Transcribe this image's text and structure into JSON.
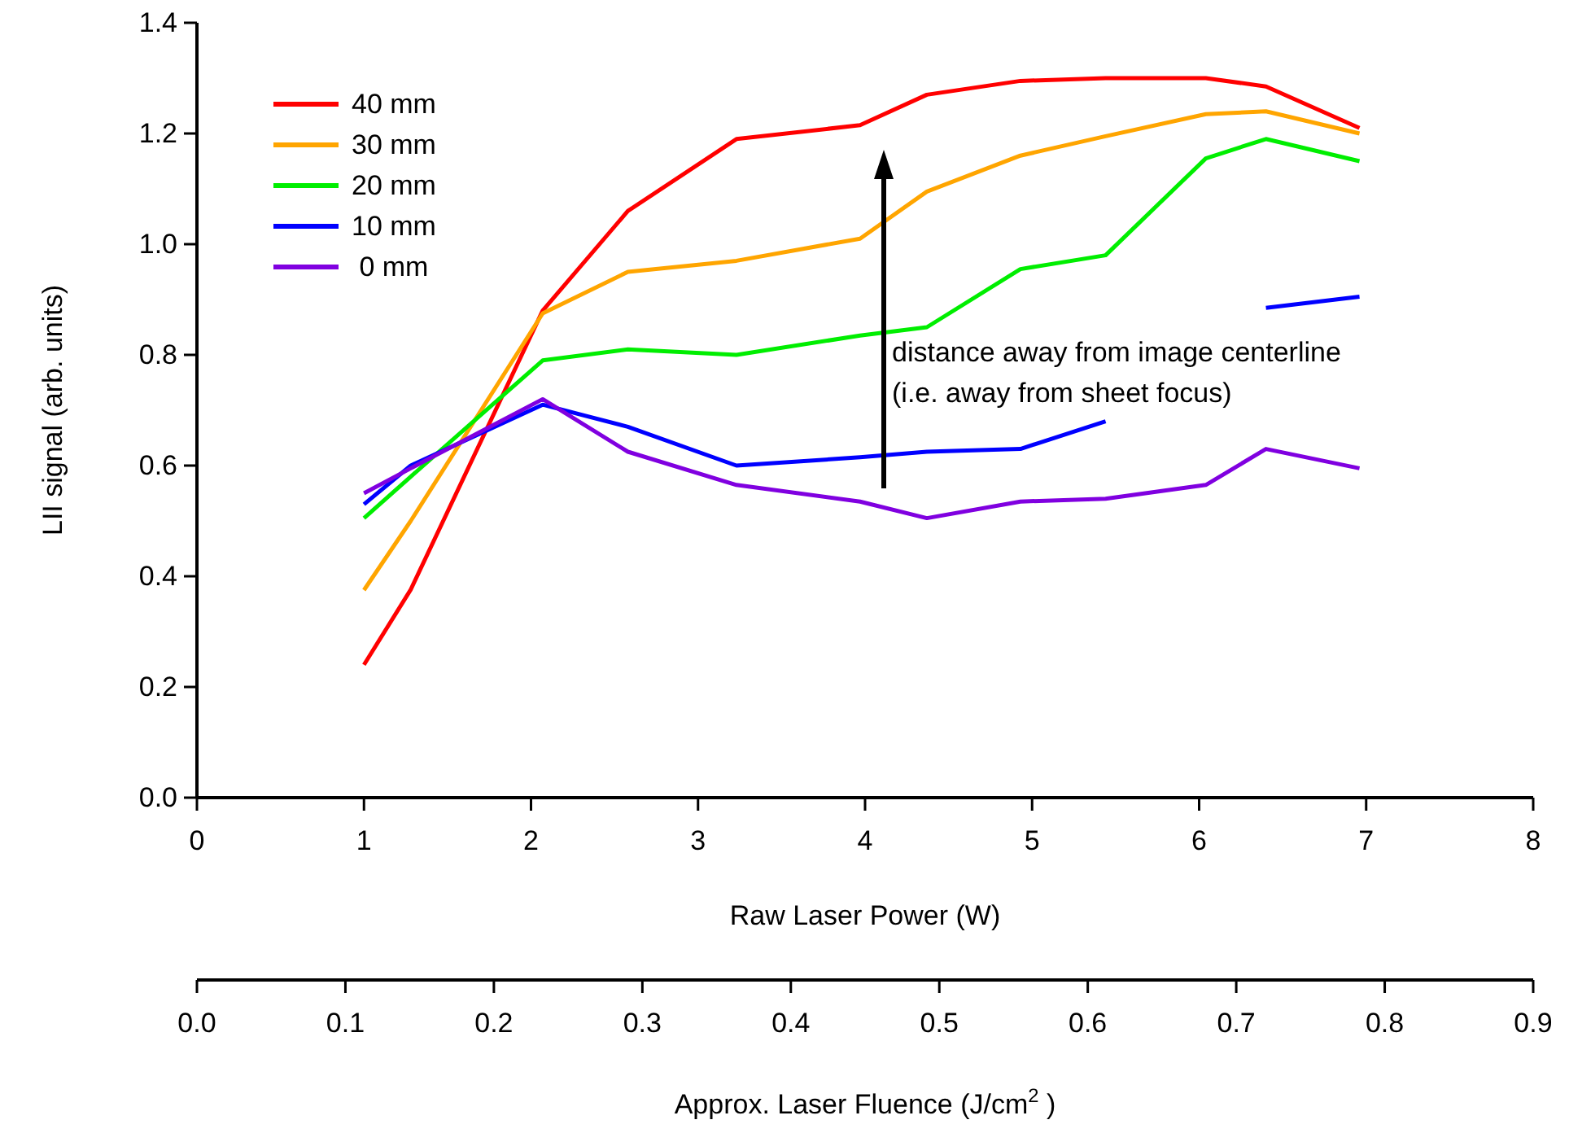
{
  "chart_data": {
    "type": "line",
    "xlabel": "Raw Laser Power (W)",
    "ylabel": "LII signal (arb. units)",
    "x2label": "Approx. Laser Fluence (J/cm$^{2}$ )",
    "x": [
      1.0,
      1.28,
      2.07,
      2.58,
      3.23,
      3.97,
      4.37,
      4.93,
      5.44,
      6.04,
      6.4,
      6.96
    ],
    "series": [
      {
        "name": "40 mm",
        "color": "#ff0000",
        "values": [
          0.24,
          0.376,
          0.88,
          1.06,
          1.19,
          1.215,
          1.27,
          1.295,
          1.3,
          1.3,
          1.285,
          1.21
        ]
      },
      {
        "name": "30 mm",
        "color": "#ffa500",
        "values": [
          0.375,
          0.5,
          0.875,
          0.95,
          0.97,
          1.01,
          1.095,
          1.16,
          1.195,
          1.235,
          1.24,
          1.2
        ]
      },
      {
        "name": "20 mm",
        "color": "#00ee00",
        "values": [
          0.505,
          0.58,
          0.79,
          0.81,
          0.8,
          0.835,
          0.85,
          0.955,
          0.98,
          1.155,
          1.19,
          1.15
        ]
      },
      {
        "name": "10 mm",
        "color": "#0000ff",
        "values": [
          0.53,
          0.6,
          0.71,
          0.67,
          0.6,
          0.615,
          0.625,
          0.63,
          0.68,
          null,
          0.885,
          0.905
        ]
      },
      {
        "name": " 0 mm",
        "color": "#8000e0",
        "values": [
          0.55,
          0.595,
          0.72,
          0.625,
          0.565,
          0.535,
          0.505,
          0.535,
          0.54,
          0.565,
          0.63,
          0.595
        ]
      }
    ],
    "xlim": [
      0,
      8
    ],
    "xticks": [
      0,
      1,
      2,
      3,
      4,
      5,
      6,
      7,
      8
    ],
    "ylim": [
      0,
      1.4
    ],
    "yticks": [
      {
        "value": 0,
        "label": "0.0"
      },
      0.2,
      0.4,
      0.6,
      0.8,
      {
        "value": 1,
        "label": "1.0"
      },
      1.2,
      1.4
    ],
    "x2lim": [
      0,
      0.9
    ],
    "x2ticks": [
      {
        "value": 0,
        "label": "0.0"
      },
      0.1,
      0.2,
      0.3,
      0.4,
      0.5,
      0.6,
      0.7,
      0.8,
      0.9
    ],
    "annotations": [
      "distance away from image centerline\n(i.e. away from sheet focus)"
    ],
    "legend": "top left",
    "grid": false,
    "marker": "none",
    "line_style": "solid"
  }
}
